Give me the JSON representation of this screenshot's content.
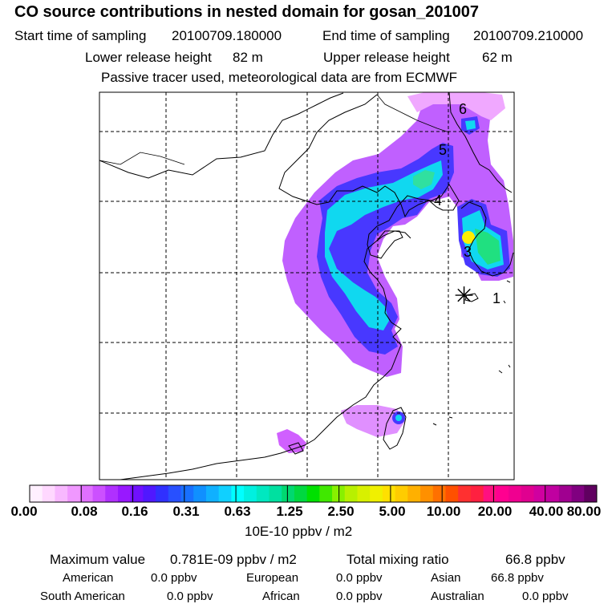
{
  "header": {
    "title": "CO  source contributions in nested domain for gosan_201007",
    "start_label": "Start time of sampling",
    "start_value": "20100709.180000",
    "end_label": "End time of sampling",
    "end_value": "20100709.210000",
    "lower_label": "Lower release height",
    "lower_value": "82 m",
    "upper_label": "Upper release height",
    "upper_value": "62 m",
    "note": "Passive tracer used, meteorological data are from ECMWF"
  },
  "map": {
    "markers": [
      "1",
      "3",
      "4",
      "5",
      "6"
    ],
    "receptor_symbol": "✳"
  },
  "colorbar": {
    "ticks": [
      "0.00",
      "0.08",
      "0.16",
      "0.31",
      "0.63",
      "1.25",
      "2.50",
      "5.00",
      "10.00",
      "20.00",
      "40.00",
      "80.00"
    ],
    "units": "10E-10 ppbv / m2",
    "colors": [
      "#fff0ff",
      "#ffd8ff",
      "#f8b8ff",
      "#f098ff",
      "#e070ff",
      "#cc50ff",
      "#b030ff",
      "#9818ff",
      "#7010ff",
      "#5018ff",
      "#3030ff",
      "#2850ff",
      "#1870ff",
      "#1090ff",
      "#10b0ff",
      "#10d0ff",
      "#00ffff",
      "#00f0e0",
      "#00e8c0",
      "#00e0a0",
      "#00d870",
      "#00d840",
      "#00e000",
      "#40e800",
      "#88f000",
      "#b8f000",
      "#d8f000",
      "#f0f000",
      "#ffe000",
      "#ffcc00",
      "#ffb000",
      "#ff9000",
      "#ff7000",
      "#ff5000",
      "#ff3030",
      "#ff2040",
      "#ff1080",
      "#ff0090",
      "#f00090",
      "#e00090",
      "#d000a0",
      "#c000a0",
      "#a00090",
      "#800080",
      "#600060"
    ]
  },
  "summary": {
    "max_label": "Maximum value",
    "max_value": "0.781E-09 ppbv / m2",
    "total_label": "Total mixing ratio",
    "total_value": "66.8 ppbv",
    "regions": [
      {
        "name": "American",
        "value": "0.0 ppbv"
      },
      {
        "name": "European",
        "value": "0.0 ppbv"
      },
      {
        "name": "Asian",
        "value": "66.8 ppbv"
      },
      {
        "name": "South American",
        "value": "0.0 ppbv"
      },
      {
        "name": "African",
        "value": "0.0 ppbv"
      },
      {
        "name": "Australian",
        "value": "0.0 ppbv"
      }
    ]
  }
}
